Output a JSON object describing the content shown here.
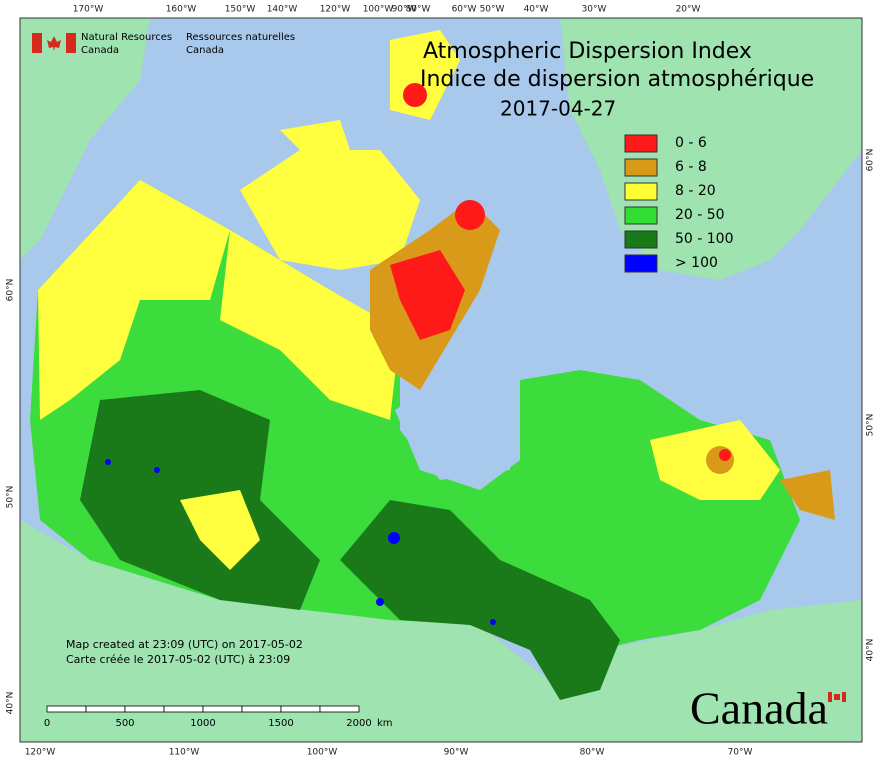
{
  "header": {
    "org_en": "Natural Resources",
    "org_en_2": "Canada",
    "org_fr": "Ressources naturelles",
    "org_fr_2": "Canada"
  },
  "title": {
    "en": "Atmospheric Dispersion Index",
    "fr": "Indice de dispersion atmosphérique",
    "date": "2017-04-27"
  },
  "legend": [
    {
      "label": "0 - 6",
      "color": "#ff1a1a"
    },
    {
      "label": "6 - 8",
      "color": "#d99a1a"
    },
    {
      "label": "8 - 20",
      "color": "#ffff33"
    },
    {
      "label": "20 - 50",
      "color": "#33dd33"
    },
    {
      "label": "50 - 100",
      "color": "#1a7a1a"
    },
    {
      "label": "> 100",
      "color": "#0000ff"
    }
  ],
  "graticule": {
    "top": [
      "170°W",
      "160°W",
      "150°W",
      "140°W",
      "120°W",
      "100°W",
      "90°W",
      "80°W",
      "60°W",
      "50°W",
      "40°W",
      "30°W",
      "20°W"
    ],
    "bottom": [
      "120°W",
      "110°W",
      "100°W",
      "90°W",
      "80°W",
      "70°W"
    ],
    "left": [
      "60°N",
      "50°N",
      "40°N"
    ],
    "right": [
      "60°N",
      "50°N",
      "40°N"
    ]
  },
  "notes": [
    "Map created at 23:09 (UTC) on 2017-05-02",
    "Carte créée le 2017-05-02 (UTC) à 23:09"
  ],
  "scale": {
    "ticks": [
      "0",
      "500",
      "1000",
      "1500",
      "2000"
    ],
    "unit": "km"
  },
  "wordmark": "Canada"
}
